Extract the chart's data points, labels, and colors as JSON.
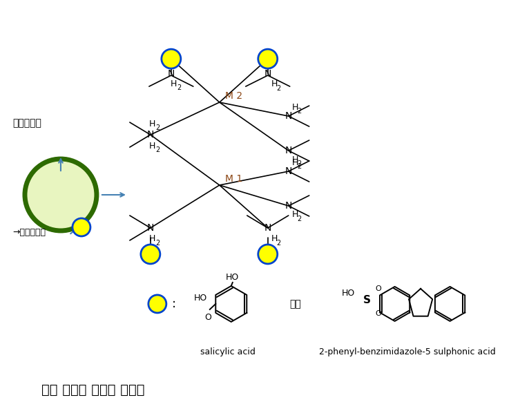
{
  "title": "복합 기능성 키토산 미립자",
  "bg_color": "#ffffff",
  "chitosan_label": "키토산입자",
  "antibacterial_label": "→항균기능기",
  "circle_fill": "#e8f5c0",
  "circle_edge": "#2d6a00",
  "circle_edge_width": 5,
  "yellow_fill": "#ffff00",
  "blue_edge": "#0044cc",
  "salicylic_label": "salicylic acid",
  "pbsa_label": "2-phenyl-benzimidazole-5 sulphonic acid",
  "or_text": "또는",
  "colon_text": ":"
}
